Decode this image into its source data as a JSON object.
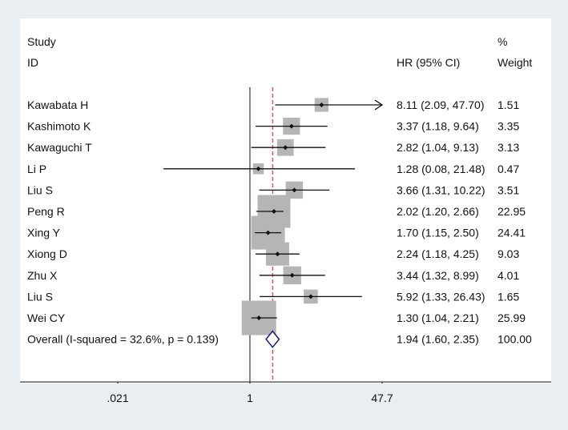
{
  "chart_data": {
    "type": "forest",
    "header": {
      "study_label": "Study",
      "id_label": "ID",
      "estimate_label": "HR (95% CI)",
      "percent_label": "%",
      "weight_label": "Weight"
    },
    "scale": "log",
    "x_ticks": [
      {
        "value": 0.021,
        "label": ".021"
      },
      {
        "value": 1,
        "label": "1"
      },
      {
        "value": 47.7,
        "label": "47.7"
      }
    ],
    "xlim": [
      0.021,
      47.7
    ],
    "null_line": 1,
    "overall_line": 1.94,
    "studies": [
      {
        "id": "Kawabata H",
        "hr": 8.11,
        "lo": 2.09,
        "hi": 47.7,
        "ci_text": "8.11 (2.09, 47.70)",
        "weight": 1.51,
        "weight_text": "1.51",
        "arrow_right": true
      },
      {
        "id": "Kashimoto K",
        "hr": 3.37,
        "lo": 1.18,
        "hi": 9.64,
        "ci_text": "3.37 (1.18, 9.64)",
        "weight": 3.35,
        "weight_text": "3.35"
      },
      {
        "id": "Kawaguchi T",
        "hr": 2.82,
        "lo": 1.04,
        "hi": 9.13,
        "ci_text": "2.82 (1.04, 9.13)",
        "weight": 3.13,
        "weight_text": "3.13"
      },
      {
        "id": "Li P",
        "hr": 1.28,
        "lo": 0.08,
        "hi": 21.48,
        "ci_text": "1.28 (0.08, 21.48)",
        "weight": 0.47,
        "weight_text": "0.47"
      },
      {
        "id": "Liu S",
        "hr": 3.66,
        "lo": 1.31,
        "hi": 10.22,
        "ci_text": "3.66 (1.31, 10.22)",
        "weight": 3.51,
        "weight_text": "3.51"
      },
      {
        "id": "Peng R",
        "hr": 2.02,
        "lo": 1.2,
        "hi": 2.66,
        "ci_text": "2.02 (1.20, 2.66)",
        "weight": 22.95,
        "weight_text": "22.95"
      },
      {
        "id": "Xing Y",
        "hr": 1.7,
        "lo": 1.15,
        "hi": 2.5,
        "ci_text": "1.70 (1.15, 2.50)",
        "weight": 24.41,
        "weight_text": "24.41"
      },
      {
        "id": "Xiong D",
        "hr": 2.24,
        "lo": 1.18,
        "hi": 4.25,
        "ci_text": "2.24 (1.18, 4.25)",
        "weight": 9.03,
        "weight_text": "9.03"
      },
      {
        "id": "Zhu X",
        "hr": 3.44,
        "lo": 1.32,
        "hi": 8.99,
        "ci_text": "3.44 (1.32, 8.99)",
        "weight": 4.01,
        "weight_text": "4.01"
      },
      {
        "id": "Liu S",
        "hr": 5.92,
        "lo": 1.33,
        "hi": 26.43,
        "ci_text": "5.92 (1.33, 26.43)",
        "weight": 1.65,
        "weight_text": "1.65"
      },
      {
        "id": "Wei CY",
        "hr": 1.3,
        "lo": 1.04,
        "hi": 2.21,
        "ci_text": "1.30 (1.04, 2.21)",
        "weight": 25.99,
        "weight_text": "25.99"
      }
    ],
    "overall": {
      "label": "Overall  (I-squared = 32.6%, p = 0.139)",
      "hr": 1.94,
      "lo": 1.6,
      "hi": 2.35,
      "ci_text": "1.94 (1.60, 2.35)",
      "weight_text": "100.00"
    }
  }
}
